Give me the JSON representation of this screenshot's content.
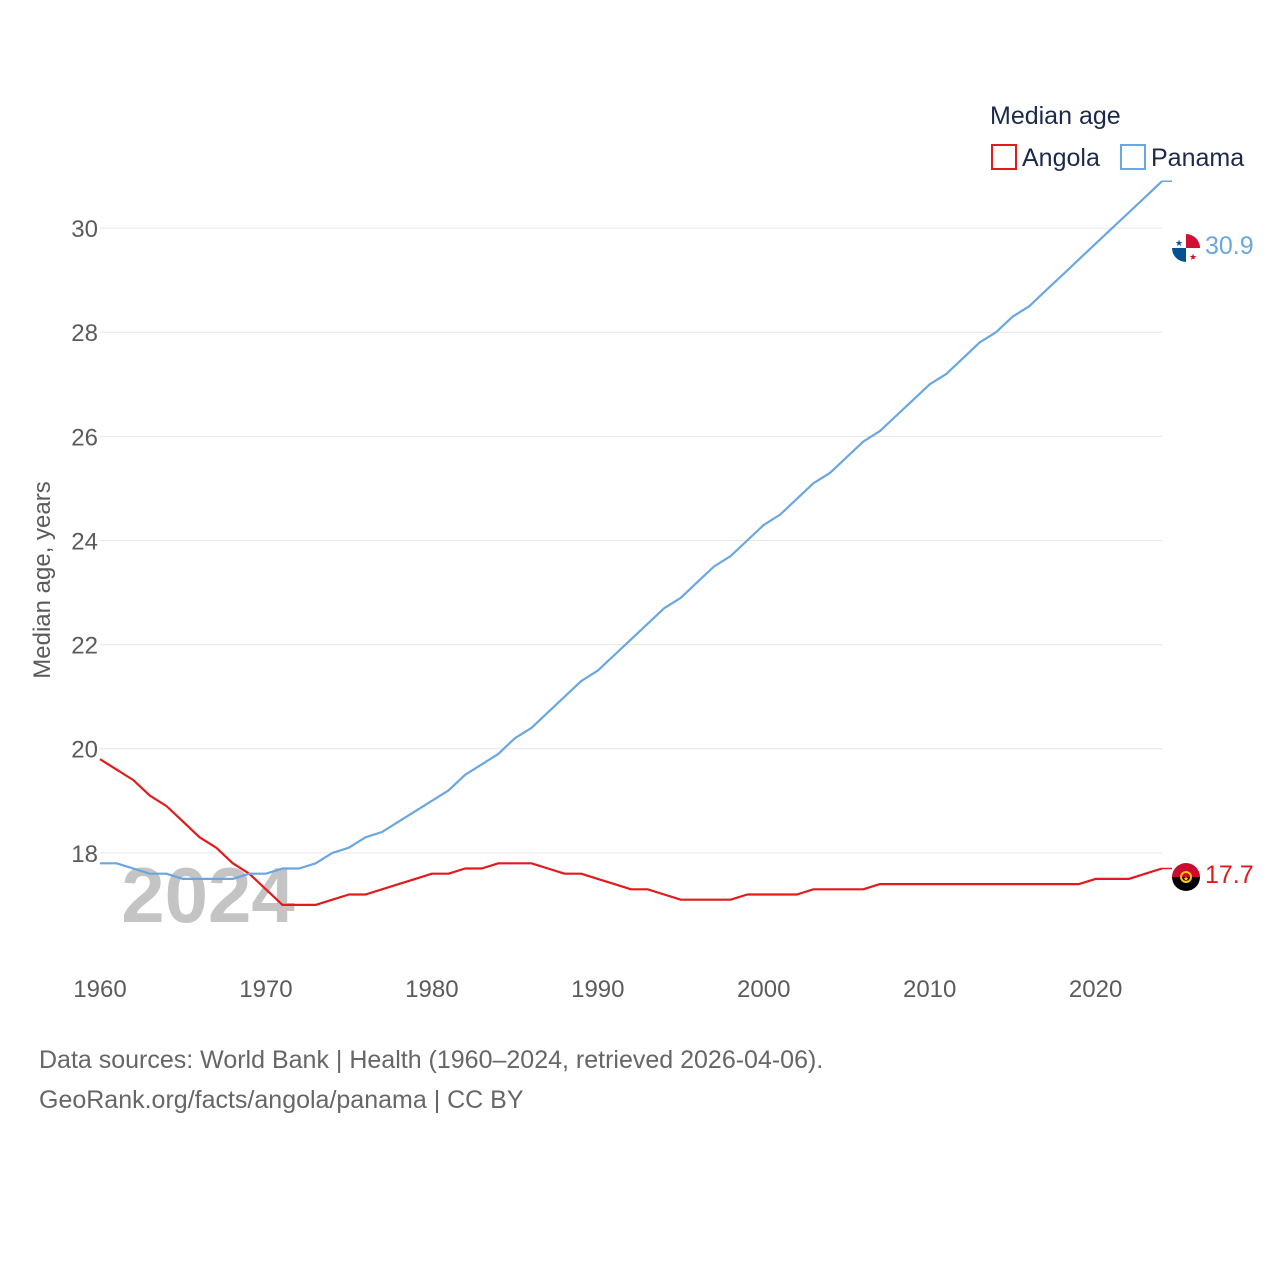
{
  "chart_data": {
    "type": "line",
    "legend_title": "Median age",
    "ylabel": "Median age, years",
    "year_watermark": "2024",
    "ylim": [
      16,
      31.5
    ],
    "xlim": [
      1960,
      2024
    ],
    "y_ticks": [
      18,
      20,
      22,
      24,
      26,
      28,
      30
    ],
    "x_ticks": [
      1960,
      1970,
      1980,
      1990,
      2000,
      2010,
      2020
    ],
    "x": [
      1960,
      1961,
      1962,
      1963,
      1964,
      1965,
      1966,
      1967,
      1968,
      1969,
      1970,
      1971,
      1972,
      1973,
      1974,
      1975,
      1976,
      1977,
      1978,
      1979,
      1980,
      1981,
      1982,
      1983,
      1984,
      1985,
      1986,
      1987,
      1988,
      1989,
      1990,
      1991,
      1992,
      1993,
      1994,
      1995,
      1996,
      1997,
      1998,
      1999,
      2000,
      2001,
      2002,
      2003,
      2004,
      2005,
      2006,
      2007,
      2008,
      2009,
      2010,
      2011,
      2012,
      2013,
      2014,
      2015,
      2016,
      2017,
      2018,
      2019,
      2020,
      2021,
      2022,
      2023,
      2024
    ],
    "series": [
      {
        "name": "Angola",
        "color": "#e31a1c",
        "end_label": "17.7",
        "flag_icon": "angola-flag-icon",
        "values": [
          19.8,
          19.6,
          19.4,
          19.1,
          18.9,
          18.6,
          18.3,
          18.1,
          17.8,
          17.6,
          17.3,
          17.0,
          17.0,
          17.0,
          17.1,
          17.2,
          17.2,
          17.3,
          17.4,
          17.5,
          17.6,
          17.6,
          17.7,
          17.7,
          17.8,
          17.8,
          17.8,
          17.7,
          17.6,
          17.6,
          17.5,
          17.4,
          17.3,
          17.3,
          17.2,
          17.1,
          17.1,
          17.1,
          17.1,
          17.2,
          17.2,
          17.2,
          17.2,
          17.3,
          17.3,
          17.3,
          17.3,
          17.4,
          17.4,
          17.4,
          17.4,
          17.4,
          17.4,
          17.4,
          17.4,
          17.4,
          17.4,
          17.4,
          17.4,
          17.4,
          17.5,
          17.5,
          17.5,
          17.6,
          17.7
        ]
      },
      {
        "name": "Panama",
        "color": "#6aa6e2",
        "end_label": "30.9",
        "flag_icon": "panama-flag-icon",
        "values": [
          17.8,
          17.8,
          17.7,
          17.6,
          17.6,
          17.5,
          17.5,
          17.5,
          17.5,
          17.6,
          17.6,
          17.7,
          17.7,
          17.8,
          18.0,
          18.1,
          18.3,
          18.4,
          18.6,
          18.8,
          19.0,
          19.2,
          19.5,
          19.7,
          19.9,
          20.2,
          20.4,
          20.7,
          21.0,
          21.3,
          21.5,
          21.8,
          22.1,
          22.4,
          22.7,
          22.9,
          23.2,
          23.5,
          23.7,
          24.0,
          24.3,
          24.5,
          24.8,
          25.1,
          25.3,
          25.6,
          25.9,
          26.1,
          26.4,
          26.7,
          27.0,
          27.2,
          27.5,
          27.8,
          28.0,
          28.3,
          28.5,
          28.8,
          29.1,
          29.4,
          29.7,
          30.0,
          30.3,
          30.6,
          30.9
        ]
      }
    ]
  },
  "footer": {
    "source_line": "Data sources: World Bank | Health (1960–2024, retrieved 2026-04-06).",
    "credit_line": "GeoRank.org/facts/angola/panama | CC BY"
  }
}
